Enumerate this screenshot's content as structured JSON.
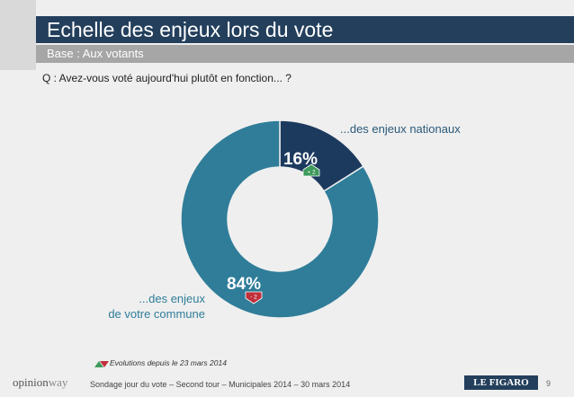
{
  "title": "Echelle des enjeux lors du vote",
  "subtitle": "Base : Aux votants",
  "question": "Q : Avez-vous voté aujourd'hui plutôt en fonction... ?",
  "chart_data": {
    "type": "pie",
    "labels": [
      "...des enjeux nationaux",
      "...des enjeux de votre commune"
    ],
    "values": [
      16,
      84
    ],
    "value_labels": [
      "16%",
      "84%"
    ],
    "colors": [
      "#1c3a5e",
      "#2f7d99"
    ],
    "changes": [
      {
        "label": "+ 2",
        "direction": "up",
        "color": "#3d9a5a"
      },
      {
        "label": "- 2",
        "direction": "down",
        "color": "#c0303a"
      }
    ]
  },
  "labels": {
    "national": "...des enjeux nationaux",
    "commune_line1": "...des enjeux",
    "commune_line2": "de votre commune"
  },
  "evolution_legend": "Evolutions depuis le 23 mars 2014",
  "brand": {
    "part1": "opinion",
    "part2": "way"
  },
  "footer": "Sondage jour du vote – Second tour – Municipales 2014 – 30 mars 2014",
  "newspaper": "LE FIGARO",
  "page_number": "9"
}
